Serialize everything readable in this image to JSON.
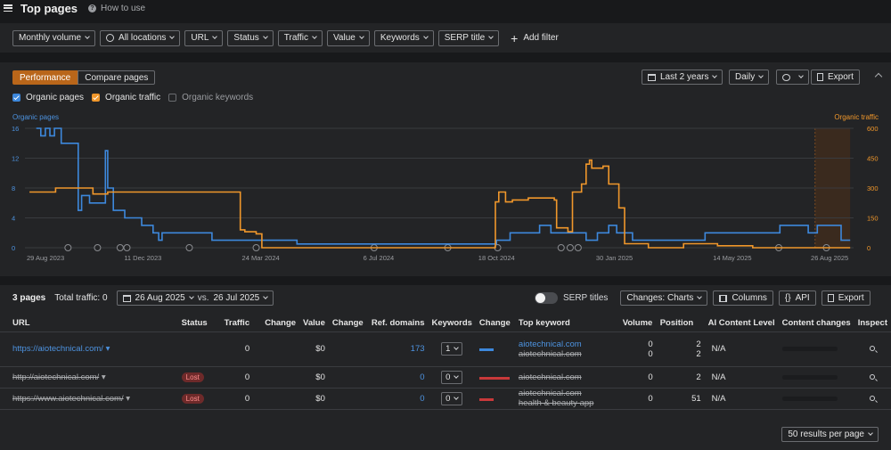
{
  "header": {
    "title": "Top pages",
    "help_label": "How to use"
  },
  "filters": [
    "Monthly volume",
    "All locations",
    "URL",
    "Status",
    "Traffic",
    "Value",
    "Keywords",
    "SERP title"
  ],
  "add_filter_label": "Add filter",
  "performance": {
    "tabs": [
      "Performance",
      "Compare pages"
    ],
    "date_range": "Last 2 years",
    "granularity": "Daily",
    "export_label": "Export",
    "legend": [
      {
        "label": "Organic pages",
        "checked": true,
        "color": "#3d88dc"
      },
      {
        "label": "Organic traffic",
        "checked": true,
        "color": "#f0972b"
      },
      {
        "label": "Organic keywords",
        "checked": false,
        "color": "#6a6c70"
      }
    ],
    "left_axis_title": "Organic pages",
    "right_axis_title": "Organic traffic"
  },
  "chart_data": {
    "type": "line",
    "x_labels": [
      "29 Aug 2023",
      "11 Dec 2023",
      "24 Mar 2024",
      "6 Jul 2024",
      "18 Oct 2024",
      "30 Jan 2025",
      "14 May 2025",
      "26 Aug 2025"
    ],
    "yleft_ticks": [
      "0",
      "4",
      "8",
      "12",
      "16"
    ],
    "yright_ticks": [
      "0",
      "150",
      "300",
      "450",
      "600"
    ],
    "ylim_left": [
      0,
      16
    ],
    "ylim_right": [
      0,
      600
    ],
    "grid": true,
    "series": [
      {
        "name": "Organic pages",
        "axis": "left",
        "color": "#3d88dc",
        "points": [
          [
            "2023-09-08",
            16
          ],
          [
            "2023-09-12",
            15
          ],
          [
            "2023-09-16",
            16
          ],
          [
            "2023-09-20",
            15
          ],
          [
            "2023-09-24",
            16
          ],
          [
            "2023-09-30",
            14
          ],
          [
            "2023-10-10",
            14
          ],
          [
            "2023-10-15",
            5
          ],
          [
            "2023-10-18",
            7
          ],
          [
            "2023-10-25",
            6
          ],
          [
            "2023-11-05",
            6
          ],
          [
            "2023-11-08",
            13
          ],
          [
            "2023-11-10",
            8
          ],
          [
            "2023-11-15",
            5
          ],
          [
            "2023-11-25",
            4
          ],
          [
            "2023-12-10",
            3
          ],
          [
            "2023-12-20",
            2
          ],
          [
            "2023-12-25",
            1
          ],
          [
            "2023-12-28",
            2
          ],
          [
            "2024-01-15",
            2
          ],
          [
            "2024-02-01",
            2
          ],
          [
            "2024-02-10",
            1
          ],
          [
            "2024-03-01",
            1
          ],
          [
            "2024-03-20",
            1
          ],
          [
            "2024-04-01",
            1
          ],
          [
            "2024-04-25",
            0.5
          ],
          [
            "2024-07-01",
            0.5
          ],
          [
            "2024-10-16",
            0.5
          ],
          [
            "2024-10-18",
            1
          ],
          [
            "2024-10-30",
            2
          ],
          [
            "2024-11-10",
            2
          ],
          [
            "2024-11-25",
            3
          ],
          [
            "2024-12-05",
            2
          ],
          [
            "2024-12-20",
            2
          ],
          [
            "2025-01-05",
            1
          ],
          [
            "2025-01-15",
            2
          ],
          [
            "2025-01-25",
            3
          ],
          [
            "2025-02-01",
            2
          ],
          [
            "2025-02-15",
            1
          ],
          [
            "2025-03-10",
            1
          ],
          [
            "2025-04-15",
            1
          ],
          [
            "2025-04-20",
            2
          ],
          [
            "2025-06-01",
            2
          ],
          [
            "2025-06-25",
            3
          ],
          [
            "2025-07-10",
            3
          ],
          [
            "2025-07-20",
            2
          ],
          [
            "2025-07-28",
            3
          ],
          [
            "2025-08-10",
            3
          ],
          [
            "2025-08-18",
            1
          ],
          [
            "2025-08-26",
            1
          ]
        ]
      },
      {
        "name": "Organic traffic",
        "axis": "right",
        "color": "#f0972b",
        "points": [
          [
            "2023-09-02",
            280
          ],
          [
            "2023-09-20",
            280
          ],
          [
            "2023-09-25",
            300
          ],
          [
            "2023-10-25",
            300
          ],
          [
            "2023-10-28",
            270
          ],
          [
            "2023-11-10",
            280
          ],
          [
            "2024-01-20",
            280
          ],
          [
            "2024-03-01",
            280
          ],
          [
            "2024-03-06",
            90
          ],
          [
            "2024-03-10",
            80
          ],
          [
            "2024-03-20",
            70
          ],
          [
            "2024-03-25",
            0
          ],
          [
            "2024-10-15",
            0
          ],
          [
            "2024-10-17",
            230
          ],
          [
            "2024-10-20",
            280
          ],
          [
            "2024-10-26",
            230
          ],
          [
            "2024-11-01",
            240
          ],
          [
            "2024-11-15",
            250
          ],
          [
            "2024-12-08",
            240
          ],
          [
            "2024-12-10",
            100
          ],
          [
            "2024-12-20",
            80
          ],
          [
            "2024-12-24",
            280
          ],
          [
            "2025-01-01",
            320
          ],
          [
            "2025-01-05",
            420
          ],
          [
            "2025-01-08",
            440
          ],
          [
            "2025-01-10",
            400
          ],
          [
            "2025-01-20",
            410
          ],
          [
            "2025-01-25",
            320
          ],
          [
            "2025-02-03",
            200
          ],
          [
            "2025-02-08",
            20
          ],
          [
            "2025-03-01",
            0
          ],
          [
            "2025-04-01",
            20
          ],
          [
            "2025-05-01",
            10
          ],
          [
            "2025-06-01",
            0
          ],
          [
            "2025-08-26",
            0
          ]
        ]
      }
    ]
  },
  "summary": {
    "pages_label": "3 pages",
    "total_traffic_label": "Total traffic: 0",
    "date_primary": "26 Aug 2025",
    "vs_label": "vs.",
    "date_compare": "26 Jul 2025",
    "serp_titles_label": "SERP titles",
    "changes_label": "Changes: Charts",
    "columns_label": "Columns",
    "api_label": "API",
    "export_label": "Export"
  },
  "table": {
    "headers": [
      "URL",
      "Status",
      "Traffic",
      "Change",
      "Value",
      "Change",
      "Ref. domains",
      "Keywords",
      "Change",
      "Top keyword",
      "Volume",
      "Position",
      "AI Content Level",
      "Content changes",
      "Inspect"
    ],
    "rows": [
      {
        "url": "https://aiotechnical.com/",
        "status": "",
        "traffic": "0",
        "value": "$0",
        "ref_domains": "173",
        "keywords": "1",
        "change_color": "#3d88dc",
        "top_keyword": "aiotechnical.com",
        "top_keyword_2": "aiotechnical.com",
        "volume": "0",
        "volume_2": "0",
        "position": "2",
        "position_2": "2",
        "ai_level": "N/A"
      },
      {
        "url": "http://aiotechnical.com/",
        "status": "Lost",
        "traffic": "0",
        "value": "$0",
        "ref_domains": "0",
        "keywords": "0",
        "change_color": "#c8393a",
        "top_keyword": "aiotechnical.com",
        "volume": "0",
        "position": "2",
        "ai_level": "N/A"
      },
      {
        "url": "https://www.aiotechnical.com/",
        "status": "Lost",
        "traffic": "0",
        "value": "$0",
        "ref_domains": "0",
        "keywords": "0",
        "change_color": "#c8393a",
        "top_keyword": "aiotechnical.com",
        "top_keyword_2": "health & beauty app",
        "volume": "0",
        "position": "51",
        "ai_level": "N/A"
      }
    ]
  },
  "pagination": {
    "per_page_label": "50 results per page"
  }
}
